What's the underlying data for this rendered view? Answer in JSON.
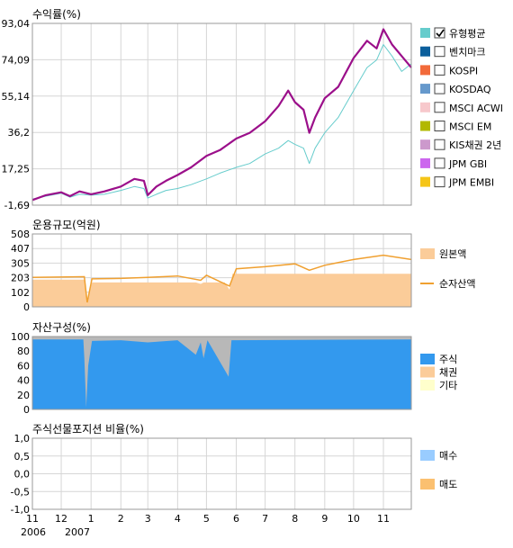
{
  "chart_data": [
    {
      "type": "line",
      "title": "수익률(%)",
      "ylim": [
        -1.69,
        93.04
      ],
      "yticks": [
        "93,04",
        "74,09",
        "55,14",
        "36,2",
        "17,25",
        "-1,69"
      ],
      "x_range": [
        "2006-11-01",
        "2007-11-30"
      ],
      "grid": true,
      "legend_position": "right",
      "legend": [
        {
          "name": "유형평균",
          "color": "#66cccc",
          "checked": true
        },
        {
          "name": "벤치마크",
          "color": "#0b5f9c",
          "checked": false
        },
        {
          "name": "KOSPI",
          "color": "#f26a3a",
          "checked": false
        },
        {
          "name": "KOSDAQ",
          "color": "#6699cc",
          "checked": false
        },
        {
          "name": "MSCI ACWI",
          "color": "#f7c8cc",
          "checked": false
        },
        {
          "name": "MSCI EM",
          "color": "#b2b800",
          "checked": false
        },
        {
          "name": "KIS채권 2년",
          "color": "#cc99cc",
          "checked": false
        },
        {
          "name": "JPM GBI",
          "color": "#cc66ee",
          "checked": false
        },
        {
          "name": "JPM EMBI",
          "color": "#f5c518",
          "checked": false
        }
      ],
      "series": [
        {
          "color": "#9b0f8a",
          "points": [
            [
              "2006-11-01",
              1
            ],
            [
              "2006-11-15",
              3.5
            ],
            [
              "2006-12-01",
              5
            ],
            [
              "2006-12-10",
              3
            ],
            [
              "2006-12-20",
              5.5
            ],
            [
              "2007-01-01",
              4
            ],
            [
              "2007-01-15",
              5.5
            ],
            [
              "2007-02-01",
              8
            ],
            [
              "2007-02-15",
              12
            ],
            [
              "2007-02-25",
              11
            ],
            [
              "2007-03-01",
              3.5
            ],
            [
              "2007-03-10",
              8
            ],
            [
              "2007-03-20",
              11
            ],
            [
              "2007-04-01",
              14
            ],
            [
              "2007-04-15",
              18
            ],
            [
              "2007-05-01",
              24
            ],
            [
              "2007-05-15",
              27
            ],
            [
              "2007-06-01",
              33
            ],
            [
              "2007-06-15",
              36
            ],
            [
              "2007-07-01",
              42
            ],
            [
              "2007-07-15",
              50
            ],
            [
              "2007-07-25",
              58
            ],
            [
              "2007-08-01",
              52
            ],
            [
              "2007-08-10",
              48
            ],
            [
              "2007-08-16",
              36
            ],
            [
              "2007-08-22",
              44
            ],
            [
              "2007-09-01",
              54
            ],
            [
              "2007-09-15",
              60
            ],
            [
              "2007-10-01",
              75
            ],
            [
              "2007-10-15",
              84
            ],
            [
              "2007-10-25",
              80
            ],
            [
              "2007-11-01",
              90
            ],
            [
              "2007-11-10",
              82
            ],
            [
              "2007-11-20",
              76
            ],
            [
              "2007-11-30",
              70
            ]
          ]
        },
        {
          "color": "#66cccc",
          "points": [
            [
              "2006-11-01",
              1.5
            ],
            [
              "2006-11-15",
              3
            ],
            [
              "2006-12-01",
              4.5
            ],
            [
              "2006-12-10",
              2.5
            ],
            [
              "2006-12-20",
              4
            ],
            [
              "2007-01-01",
              3.5
            ],
            [
              "2007-01-15",
              4
            ],
            [
              "2007-02-01",
              6
            ],
            [
              "2007-02-15",
              8
            ],
            [
              "2007-02-25",
              7
            ],
            [
              "2007-03-01",
              2
            ],
            [
              "2007-03-10",
              4
            ],
            [
              "2007-03-20",
              6
            ],
            [
              "2007-04-01",
              7
            ],
            [
              "2007-04-15",
              9
            ],
            [
              "2007-05-01",
              12
            ],
            [
              "2007-05-15",
              15
            ],
            [
              "2007-06-01",
              18
            ],
            [
              "2007-06-15",
              20
            ],
            [
              "2007-07-01",
              25
            ],
            [
              "2007-07-15",
              28
            ],
            [
              "2007-07-25",
              32
            ],
            [
              "2007-08-01",
              30
            ],
            [
              "2007-08-10",
              28
            ],
            [
              "2007-08-16",
              20
            ],
            [
              "2007-08-22",
              28
            ],
            [
              "2007-09-01",
              36
            ],
            [
              "2007-09-15",
              44
            ],
            [
              "2007-10-01",
              58
            ],
            [
              "2007-10-15",
              70
            ],
            [
              "2007-10-25",
              74
            ],
            [
              "2007-11-01",
              82
            ],
            [
              "2007-11-10",
              76
            ],
            [
              "2007-11-20",
              68
            ],
            [
              "2007-11-30",
              72
            ]
          ]
        }
      ]
    },
    {
      "type": "area",
      "title": "운용규모(억원)",
      "ylim": [
        0,
        508
      ],
      "yticks": [
        "508",
        "407",
        "305",
        "203",
        "102",
        "0"
      ],
      "legend": [
        {
          "name": "원본액",
          "color": "#fbcc99"
        },
        {
          "name": "순자산액",
          "color": "#f0a030"
        }
      ],
      "series": [
        {
          "name": "원본액",
          "points": [
            [
              "2006-11-01",
              190
            ],
            [
              "2006-12-25",
              190
            ],
            [
              "2006-12-28",
              20
            ],
            [
              "2007-01-02",
              170
            ],
            [
              "2007-04-20",
              170
            ],
            [
              "2007-04-25",
              160
            ],
            [
              "2007-04-28",
              170
            ],
            [
              "2007-05-20",
              170
            ],
            [
              "2007-05-25",
              120
            ],
            [
              "2007-05-28",
              230
            ],
            [
              "2007-11-30",
              230
            ]
          ]
        },
        {
          "name": "순자산액",
          "points": [
            [
              "2006-11-01",
              205
            ],
            [
              "2006-12-25",
              210
            ],
            [
              "2006-12-28",
              30
            ],
            [
              "2007-01-02",
              195
            ],
            [
              "2007-02-01",
              198
            ],
            [
              "2007-03-01",
              205
            ],
            [
              "2007-04-01",
              215
            ],
            [
              "2007-04-25",
              185
            ],
            [
              "2007-05-01",
              220
            ],
            [
              "2007-05-25",
              145
            ],
            [
              "2007-06-01",
              265
            ],
            [
              "2007-07-01",
              280
            ],
            [
              "2007-08-01",
              300
            ],
            [
              "2007-08-16",
              255
            ],
            [
              "2007-09-01",
              290
            ],
            [
              "2007-10-01",
              330
            ],
            [
              "2007-11-01",
              360
            ],
            [
              "2007-11-30",
              330
            ]
          ]
        }
      ]
    },
    {
      "type": "area",
      "title": "자산구성(%)",
      "ylim": [
        0,
        100
      ],
      "yticks": [
        "100",
        "80",
        "60",
        "40",
        "20",
        "0"
      ],
      "legend": [
        {
          "name": "주식",
          "color": "#3399ee"
        },
        {
          "name": "채권",
          "color": "#fbcc99"
        },
        {
          "name": "기타",
          "color": "#ffffcc"
        }
      ],
      "stock_share": [
        [
          "2006-11-01",
          96
        ],
        [
          "2006-12-24",
          96
        ],
        [
          "2006-12-25",
          70
        ],
        [
          "2006-12-27",
          3
        ],
        [
          "2006-12-29",
          60
        ],
        [
          "2007-01-02",
          94
        ],
        [
          "2007-02-01",
          95
        ],
        [
          "2007-03-01",
          92
        ],
        [
          "2007-04-01",
          95
        ],
        [
          "2007-04-20",
          75
        ],
        [
          "2007-04-25",
          92
        ],
        [
          "2007-04-28",
          70
        ],
        [
          "2007-05-02",
          95
        ],
        [
          "2007-05-24",
          45
        ],
        [
          "2007-05-27",
          95
        ],
        [
          "2007-11-30",
          96
        ]
      ]
    },
    {
      "type": "bar",
      "title": "주식선물포지션 비율(%)",
      "ylim": [
        -1.0,
        1.0
      ],
      "yticks": [
        "1,0",
        "0,5",
        "0,0",
        "-0,5",
        "-1,0"
      ],
      "x_tick_labels": [
        "11",
        "12",
        "1",
        "2",
        "3",
        "4",
        "5",
        "6",
        "7",
        "8",
        "9",
        "10",
        "11"
      ],
      "x_year_labels": [
        "2006",
        "2007"
      ],
      "legend": [
        {
          "name": "매수",
          "color": "#99ccff"
        },
        {
          "name": "매도",
          "color": "#fbc070"
        }
      ],
      "values": []
    }
  ]
}
